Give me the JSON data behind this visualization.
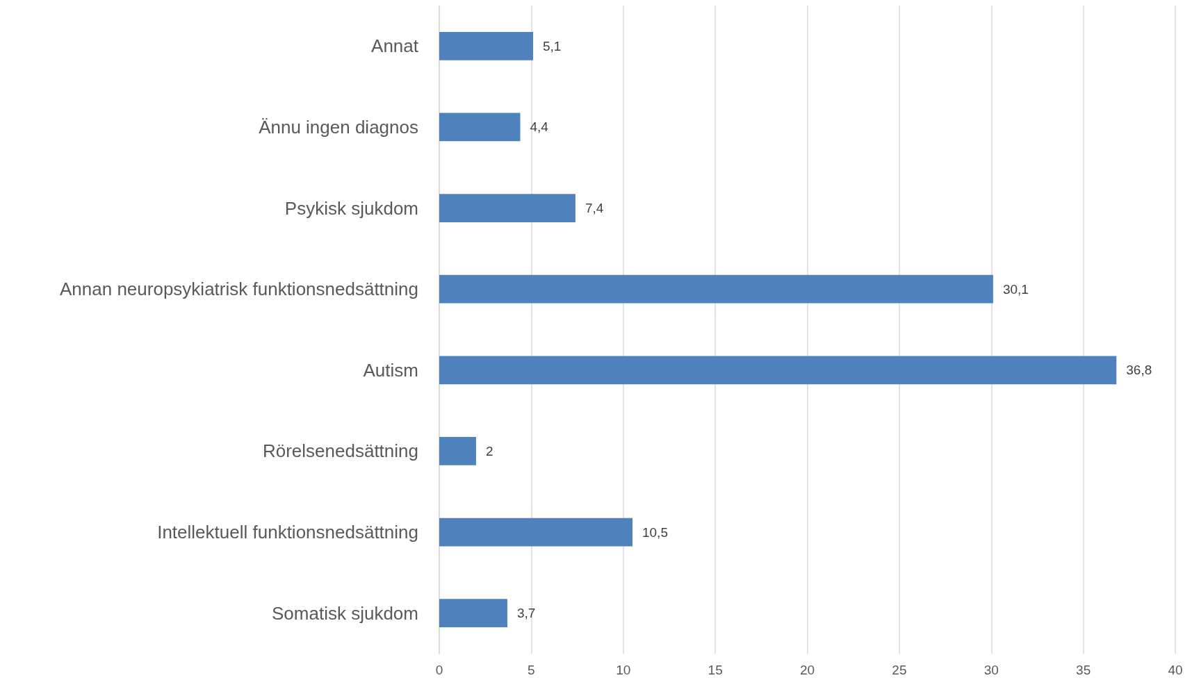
{
  "chart_data": {
    "type": "bar",
    "orientation": "horizontal",
    "categories": [
      "Annat",
      "Ännu ingen diagnos",
      "Psykisk sjukdom",
      "Annan neuropsykiatrisk funktionsnedsättning",
      "Autism",
      "Rörelsenedsättning",
      "Intellektuell funktionsnedsättning",
      "Somatisk sjukdom"
    ],
    "values": [
      5.1,
      4.4,
      7.4,
      30.1,
      36.8,
      2,
      10.5,
      3.7
    ],
    "value_labels": [
      "5,1",
      "4,4",
      "7,4",
      "30,1",
      "36,8",
      "2",
      "10,5",
      "3,7"
    ],
    "color": "#4f81bd",
    "xlim": [
      0,
      40
    ],
    "xticks": [
      0,
      5,
      10,
      15,
      20,
      25,
      30,
      35,
      40
    ],
    "grid": "x"
  }
}
